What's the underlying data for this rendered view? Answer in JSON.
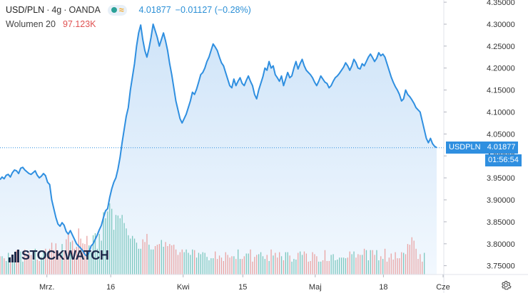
{
  "header": {
    "symbol": "USD/PLN",
    "interval": "4g",
    "source": "OANDA",
    "separator": "·",
    "last_price": "4.01877",
    "change": "−0.01127 (−0.28%)",
    "volume_label": "Wolumen 20",
    "volume_value": "97.123K"
  },
  "logo_text": "STOCKWATCH",
  "price_badge": {
    "label": "USDPLN",
    "value": "4.01877"
  },
  "countdown": "01:56:54",
  "colors": {
    "line": "#2f8fe0",
    "area_top": "#cfe4f8",
    "area_bottom": "#f2f8fe",
    "volume_up": "#7cc7bf",
    "volume_down": "#e9a3a3",
    "badge_bg": "#2f8fe0",
    "countdown_bg": "#2f8fe0"
  },
  "icons": {
    "settings": "gear-icon",
    "indicator_toggle": "eye-dot-icon",
    "wave": "wave-icon"
  },
  "chart_data": {
    "type": "area",
    "series": [
      {
        "name": "USD/PLN",
        "values": [
          3.946,
          3.952,
          3.948,
          3.956,
          3.958,
          3.952,
          3.962,
          3.968,
          3.966,
          3.96,
          3.972,
          3.974,
          3.968,
          3.964,
          3.96,
          3.958,
          3.962,
          3.966,
          3.956,
          3.95,
          3.954,
          3.96,
          3.955,
          3.94,
          3.935,
          3.9,
          3.88,
          3.86,
          3.845,
          3.84,
          3.848,
          3.842,
          3.828,
          3.822,
          3.83,
          3.82,
          3.81,
          3.8,
          3.795,
          3.79,
          3.784,
          3.776,
          3.772,
          3.78,
          3.795,
          3.8,
          3.81,
          3.82,
          3.832,
          3.842,
          3.86,
          3.875,
          3.88,
          3.905,
          3.925,
          3.94,
          3.95,
          3.97,
          3.996,
          4.03,
          4.06,
          4.09,
          4.11,
          4.15,
          4.18,
          4.21,
          4.25,
          4.28,
          4.298,
          4.265,
          4.24,
          4.225,
          4.245,
          4.27,
          4.3,
          4.285,
          4.27,
          4.25,
          4.265,
          4.28,
          4.262,
          4.24,
          4.21,
          4.185,
          4.155,
          4.125,
          4.105,
          4.085,
          4.075,
          4.085,
          4.095,
          4.11,
          4.125,
          4.145,
          4.14,
          4.152,
          4.168,
          4.185,
          4.19,
          4.2,
          4.215,
          4.225,
          4.24,
          4.255,
          4.248,
          4.24,
          4.225,
          4.212,
          4.205,
          4.19,
          4.175,
          4.16,
          4.155,
          4.175,
          4.16,
          4.17,
          4.178,
          4.165,
          4.16,
          4.172,
          4.182,
          4.17,
          4.16,
          4.14,
          4.13,
          4.15,
          4.165,
          4.18,
          4.2,
          4.195,
          4.215,
          4.2,
          4.205,
          4.185,
          4.178,
          4.17,
          4.182,
          4.16,
          4.175,
          4.19,
          4.178,
          4.182,
          4.2,
          4.215,
          4.198,
          4.21,
          4.22,
          4.205,
          4.195,
          4.19,
          4.185,
          4.178,
          4.168,
          4.16,
          4.17,
          4.182,
          4.175,
          4.168,
          4.165,
          4.155,
          4.16,
          4.17,
          4.178,
          4.182,
          4.188,
          4.195,
          4.202,
          4.212,
          4.205,
          4.195,
          4.205,
          4.22,
          4.212,
          4.2,
          4.198,
          4.21,
          4.205,
          4.215,
          4.225,
          4.232,
          4.224,
          4.215,
          4.222,
          4.235,
          4.228,
          4.232,
          4.225,
          4.21,
          4.195,
          4.18,
          4.168,
          4.158,
          4.15,
          4.14,
          4.125,
          4.13,
          4.15,
          4.14,
          4.135,
          4.128,
          4.12,
          4.11,
          4.105,
          4.1,
          4.08,
          4.06,
          4.04,
          4.03,
          4.04,
          4.028,
          4.022,
          4.019
        ],
        "xlim": [
          0,
          205
        ]
      }
    ],
    "volume": [
      27,
      27,
      24,
      20,
      32,
      26,
      21,
      22,
      36,
      25,
      34,
      19,
      37,
      30,
      32,
      29,
      21,
      38,
      22,
      20,
      26,
      33,
      38,
      27,
      38,
      47,
      36,
      46,
      34,
      31,
      45,
      34,
      52,
      60,
      48,
      50,
      38,
      41,
      68,
      53,
      46,
      45,
      57,
      43,
      33,
      58,
      61,
      38,
      60,
      50,
      92,
      83,
      93,
      105,
      97,
      66,
      88,
      87,
      83,
      88,
      76,
      68,
      58,
      53,
      57,
      53,
      47,
      38,
      38,
      52,
      48,
      60,
      44,
      37,
      37,
      42,
      44,
      45,
      51,
      41,
      48,
      42,
      45,
      43,
      44,
      37,
      29,
      33,
      37,
      33,
      37,
      32,
      29,
      37,
      36,
      25,
      32,
      30,
      33,
      32,
      26,
      21,
      24,
      24,
      34,
      23,
      28,
      25,
      20,
      33,
      29,
      25,
      27,
      27,
      23,
      37,
      23,
      23,
      27,
      31,
      31,
      37,
      19,
      26,
      29,
      30,
      33,
      27,
      23,
      29,
      20,
      37,
      28,
      32,
      25,
      33,
      27,
      21,
      33,
      33,
      28,
      19,
      23,
      22,
      32,
      34,
      29,
      34,
      31,
      19,
      20,
      33,
      30,
      27,
      19,
      19,
      21,
      36,
      20,
      20,
      29,
      30,
      21,
      22,
      25,
      25,
      25,
      24,
      25,
      34,
      30,
      34,
      25,
      30,
      29,
      29,
      38,
      36,
      21,
      36,
      36,
      29,
      36,
      21,
      27,
      23,
      38,
      19,
      25,
      31,
      22,
      33,
      24,
      24,
      33,
      32,
      30,
      45,
      44,
      55,
      50,
      38,
      23,
      30,
      19,
      32
    ],
    "volume_up": [
      0,
      1,
      0,
      1,
      1,
      0,
      1,
      1,
      0,
      0,
      1,
      1,
      0,
      0,
      0,
      0,
      1,
      1,
      0,
      0,
      1,
      1,
      0,
      0,
      0,
      0,
      0,
      0,
      0,
      0,
      1,
      0,
      0,
      0,
      1,
      0,
      0,
      0,
      0,
      0,
      0,
      0,
      0,
      1,
      1,
      1,
      1,
      1,
      1,
      1,
      1,
      1,
      1,
      1,
      1,
      1,
      1,
      1,
      1,
      1,
      1,
      1,
      1,
      1,
      1,
      1,
      1,
      1,
      1,
      0,
      0,
      0,
      1,
      1,
      1,
      0,
      0,
      0,
      1,
      1,
      0,
      0,
      0,
      0,
      0,
      0,
      0,
      0,
      0,
      1,
      1,
      1,
      1,
      1,
      0,
      1,
      1,
      1,
      1,
      1,
      1,
      1,
      1,
      1,
      0,
      0,
      0,
      0,
      0,
      0,
      0,
      0,
      0,
      1,
      0,
      1,
      1,
      0,
      0,
      1,
      1,
      0,
      0,
      0,
      0,
      1,
      1,
      1,
      1,
      0,
      1,
      0,
      1,
      0,
      0,
      0,
      1,
      0,
      1,
      1,
      0,
      1,
      1,
      1,
      0,
      1,
      1,
      0,
      0,
      0,
      0,
      0,
      0,
      0,
      1,
      1,
      0,
      0,
      0,
      0,
      1,
      1,
      1,
      1,
      1,
      1,
      1,
      1,
      0,
      0,
      1,
      1,
      0,
      0,
      0,
      1,
      0,
      1,
      1,
      1,
      0,
      0,
      1,
      1,
      0,
      1,
      0,
      0,
      0,
      0,
      0,
      0,
      0,
      0,
      0,
      1,
      0,
      0,
      0,
      0,
      0,
      0,
      0,
      0,
      0,
      1,
      0,
      0,
      0,
      0
    ],
    "y_ticks": [
      "4.35000",
      "4.30000",
      "4.25000",
      "4.20000",
      "4.15000",
      "4.10000",
      "4.05000",
      "4.00000",
      "3.95000",
      "3.90000",
      "3.85000",
      "3.80000",
      "3.75000"
    ],
    "y_tick_values": [
      4.35,
      4.3,
      4.25,
      4.2,
      4.15,
      4.1,
      4.05,
      4.0,
      3.95,
      3.9,
      3.85,
      3.8,
      3.75
    ],
    "x_ticks": [
      {
        "label": "Mrz.",
        "x": 22
      },
      {
        "label": "16",
        "x": 52
      },
      {
        "label": "Kwi",
        "x": 86
      },
      {
        "label": "15",
        "x": 114
      },
      {
        "label": "Maj",
        "x": 148
      },
      {
        "label": "18",
        "x": 180
      },
      {
        "label": "Cze",
        "x": 208
      }
    ],
    "ylim": [
      3.73,
      4.355
    ],
    "current_value": 4.01877,
    "grid": false
  }
}
